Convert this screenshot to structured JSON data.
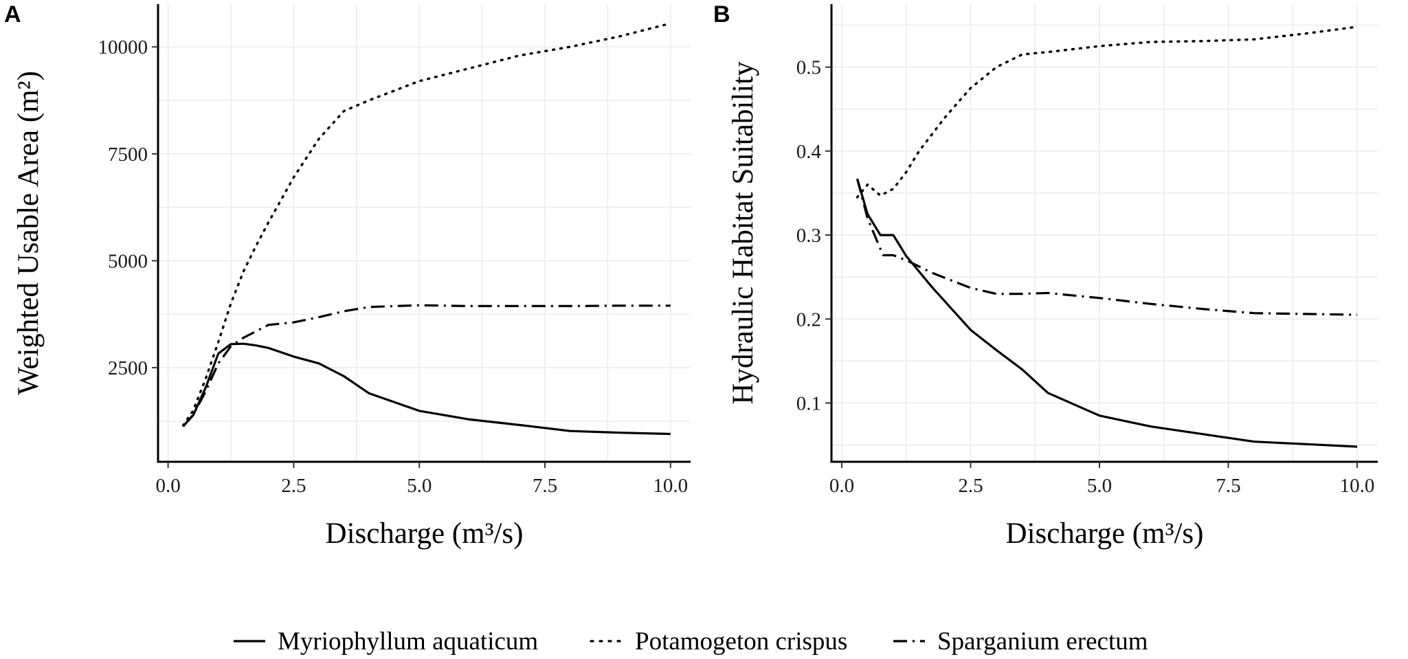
{
  "chart_data": [
    {
      "type": "line",
      "panel": "A",
      "xlabel": "Discharge (m³/s)",
      "ylabel": "Weighted Usable Area (m²)",
      "xlim": [
        -0.2,
        10.4
      ],
      "ylim": [
        300,
        11000
      ],
      "xticks": [
        0,
        2.5,
        5,
        7.5,
        10
      ],
      "xtick_labels": [
        "0.0",
        "2.5",
        "5.0",
        "7.5",
        "10.0"
      ],
      "yticks": [
        2500,
        5000,
        7500,
        10000
      ],
      "ytick_labels": [
        "2500",
        "5000",
        "7500",
        "10000"
      ],
      "series": [
        {
          "name": "Myriophyllum aquaticum",
          "dash": "solid",
          "x": [
            0.3,
            0.5,
            0.75,
            1.0,
            1.25,
            1.5,
            1.75,
            2.0,
            2.5,
            3.0,
            3.5,
            4.0,
            5.0,
            6.0,
            7.0,
            8.0,
            9.0,
            10.0
          ],
          "y": [
            1130,
            1390,
            2040,
            2830,
            3050,
            3060,
            3020,
            2960,
            2760,
            2600,
            2300,
            1900,
            1490,
            1290,
            1160,
            1020,
            980,
            950
          ]
        },
        {
          "name": "Potamogeton crispus",
          "dash": "dotted",
          "x": [
            0.3,
            0.5,
            0.75,
            1.0,
            1.25,
            1.5,
            1.75,
            2.0,
            2.5,
            3.0,
            3.5,
            4.0,
            5.0,
            6.0,
            7.0,
            8.0,
            9.0,
            10.0
          ],
          "y": [
            1150,
            1500,
            2250,
            3100,
            4000,
            4750,
            5350,
            5900,
            6950,
            7850,
            8500,
            8750,
            9200,
            9500,
            9800,
            10000,
            10250,
            10550
          ]
        },
        {
          "name": "Sparganium erectum",
          "dash": "dashdot",
          "x": [
            0.3,
            0.5,
            0.75,
            1.0,
            1.25,
            1.5,
            2.0,
            2.5,
            3.0,
            3.5,
            4.0,
            5.0,
            6.0,
            7.0,
            8.0,
            9.0,
            10.0
          ],
          "y": [
            1130,
            1400,
            1950,
            2600,
            3000,
            3200,
            3500,
            3560,
            3680,
            3820,
            3920,
            3960,
            3940,
            3940,
            3940,
            3950,
            3950
          ]
        }
      ]
    },
    {
      "type": "line",
      "panel": "B",
      "xlabel": "Discharge (m³/s)",
      "ylabel": "Hydraulic Habitat Suitability",
      "xlim": [
        -0.2,
        10.4
      ],
      "ylim": [
        0.03,
        0.575
      ],
      "xticks": [
        0,
        2.5,
        5,
        7.5,
        10
      ],
      "xtick_labels": [
        "0.0",
        "2.5",
        "5.0",
        "7.5",
        "10.0"
      ],
      "yticks": [
        0.1,
        0.2,
        0.3,
        0.4,
        0.5
      ],
      "ytick_labels": [
        "0.1",
        "0.2",
        "0.3",
        "0.4",
        "0.5"
      ],
      "series": [
        {
          "name": "Myriophyllum aquaticum",
          "dash": "solid",
          "x": [
            0.3,
            0.5,
            0.75,
            1.0,
            1.25,
            1.75,
            2.5,
            3.0,
            3.5,
            4.0,
            5.0,
            6.0,
            7.0,
            8.0,
            9.0,
            10.0
          ],
          "y": [
            0.367,
            0.325,
            0.3,
            0.3,
            0.275,
            0.238,
            0.187,
            0.163,
            0.14,
            0.112,
            0.085,
            0.072,
            0.063,
            0.054,
            0.051,
            0.048
          ]
        },
        {
          "name": "Potamogeton crispus",
          "dash": "dotted",
          "x": [
            0.3,
            0.5,
            0.75,
            1.0,
            1.25,
            1.5,
            2.0,
            2.5,
            3.0,
            3.5,
            4.0,
            5.0,
            6.0,
            7.0,
            8.0,
            9.0,
            10.0
          ],
          "y": [
            0.345,
            0.36,
            0.347,
            0.355,
            0.375,
            0.4,
            0.44,
            0.475,
            0.5,
            0.515,
            0.518,
            0.525,
            0.53,
            0.531,
            0.533,
            0.54,
            0.548
          ]
        },
        {
          "name": "Sparganium erectum",
          "dash": "dashdot",
          "x": [
            0.3,
            0.5,
            0.8,
            1.0,
            1.25,
            1.75,
            2.5,
            3.0,
            3.5,
            4.0,
            5.0,
            6.0,
            7.0,
            8.0,
            9.0,
            10.0
          ],
          "y": [
            0.367,
            0.32,
            0.276,
            0.276,
            0.27,
            0.255,
            0.237,
            0.23,
            0.23,
            0.231,
            0.225,
            0.218,
            0.212,
            0.207,
            0.206,
            0.205
          ]
        }
      ]
    }
  ],
  "legend": {
    "position": "bottom",
    "entries": [
      {
        "label": "Myriophyllum aquaticum",
        "dash": "solid"
      },
      {
        "label": "Potamogeton crispus",
        "dash": "dotted"
      },
      {
        "label": "Sparganium erectum",
        "dash": "dashdot"
      }
    ]
  },
  "colors": {
    "line": "#000000",
    "grid": "#ebebeb",
    "background": "#ffffff"
  }
}
